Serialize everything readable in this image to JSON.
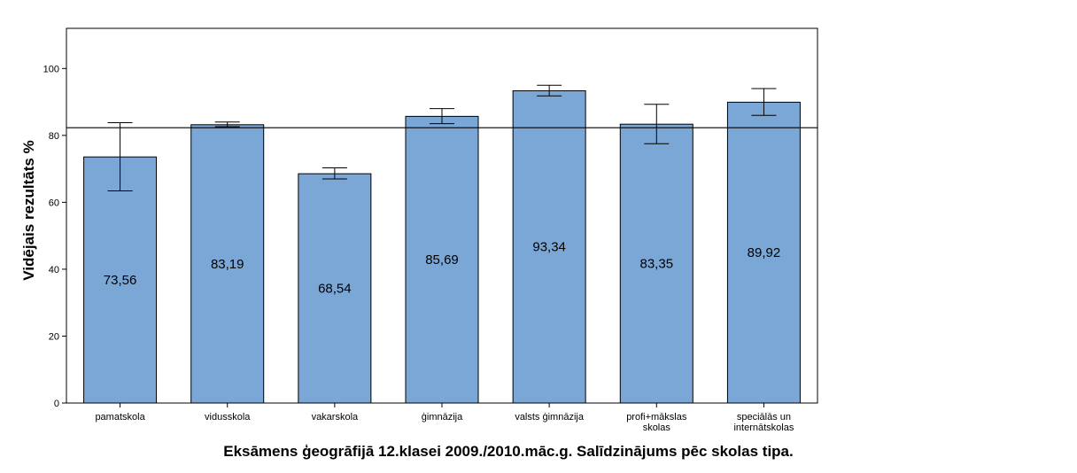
{
  "chart_data": {
    "type": "bar",
    "title": "Eksāmens ģeogrāfijā 12.klasei 2009./2010.māc.g. Salīdzinājums pēc skolas tipa.",
    "xlabel": "",
    "ylabel": "Vidējais rezultāts %",
    "ylim": [
      0,
      112
    ],
    "yticks": [
      0,
      20,
      40,
      60,
      80,
      100
    ],
    "categories": [
      [
        "pamatskola"
      ],
      [
        "vidusskola"
      ],
      [
        "vakarskola"
      ],
      [
        "ģimnāzija"
      ],
      [
        "valsts ģimnāzija"
      ],
      [
        "profi+mākslas",
        "skolas"
      ],
      [
        "speciālās un",
        "internātskolas"
      ]
    ],
    "values": [
      73.56,
      83.19,
      68.54,
      85.69,
      93.34,
      83.35,
      89.92
    ],
    "value_labels": [
      "73,56",
      "83,19",
      "68,54",
      "85,69",
      "93,34",
      "83,35",
      "89,92"
    ],
    "error_low": [
      63.4,
      82.6,
      67.0,
      83.5,
      91.8,
      77.5,
      86.0
    ],
    "error_high": [
      83.8,
      84.0,
      70.3,
      88.0,
      95.0,
      89.3,
      94.0
    ],
    "reference_line": 82.3,
    "bar_color": "#7ba7d7",
    "grid": false
  }
}
